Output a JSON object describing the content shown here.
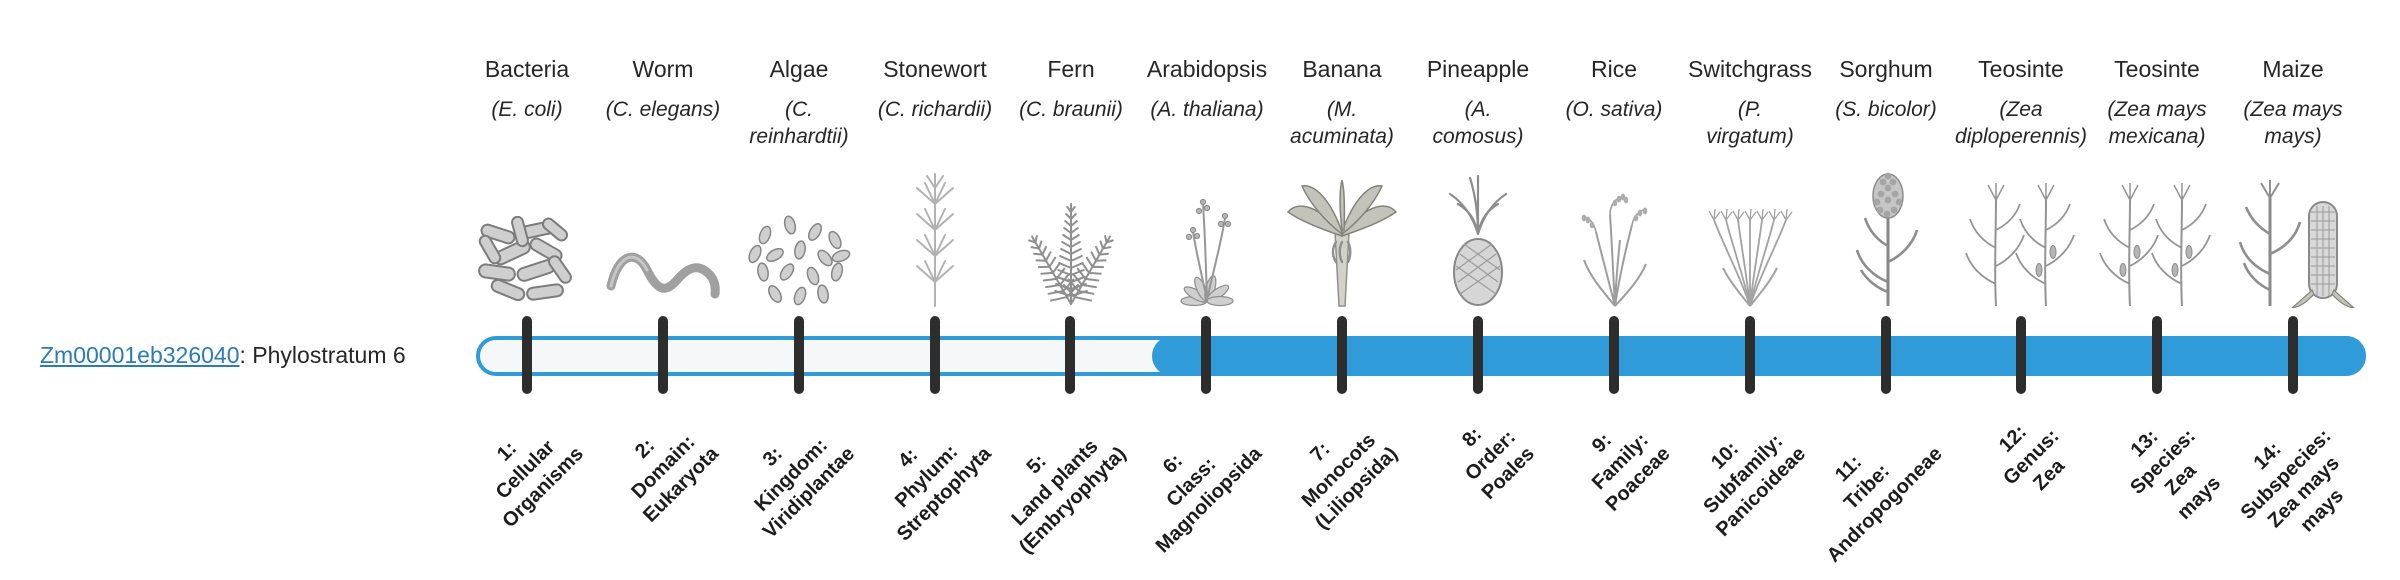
{
  "gene": {
    "id": "Zm00001eb326040",
    "suffix": ": Phylostratum 6"
  },
  "timeline": {
    "phylostratum": 6,
    "num_strata": 14,
    "bar_color": "#2F9BD8",
    "track_color": "#f6f7f8",
    "tick_color": "#2d2d2d",
    "link_color": "#2b7bba",
    "text_color": "#262626",
    "label_color": "#1c1c1c"
  },
  "organisms": [
    {
      "stratum": 1,
      "name": "Bacteria",
      "sci": "(E. coli)",
      "icon": "bacteria-icon",
      "bottom_label": "1:\nCellular\nOrganisms"
    },
    {
      "stratum": 2,
      "name": "Worm",
      "sci": "(C. elegans)",
      "icon": "worm-icon",
      "bottom_label": "2:\nDomain:\nEukaryota"
    },
    {
      "stratum": 3,
      "name": "Algae",
      "sci": "(C.\nreinhardtii)",
      "icon": "algae-icon",
      "bottom_label": "3:\nKingdom:\nViridiplantae"
    },
    {
      "stratum": 4,
      "name": "Stonewort",
      "sci": "(C. richardii)",
      "icon": "stonewort-icon",
      "bottom_label": "4:\nPhylum:\nStreptophyta"
    },
    {
      "stratum": 5,
      "name": "Fern",
      "sci": "(C. braunii)",
      "icon": "fern-icon",
      "bottom_label": "5:\nLand plants\n(Embryophyta)"
    },
    {
      "stratum": 6,
      "name": "Arabidopsis",
      "sci": "(A. thaliana)",
      "icon": "arabidopsis-icon",
      "bottom_label": "6:\nClass:\nMagnoliopsida"
    },
    {
      "stratum": 7,
      "name": "Banana",
      "sci": "(M.\nacuminata)",
      "icon": "banana-icon",
      "bottom_label": "7:\nMonocots\n(Liliopsida)"
    },
    {
      "stratum": 8,
      "name": "Pineapple",
      "sci": "(A.\ncomosus)",
      "icon": "pineapple-icon",
      "bottom_label": "8:\nOrder:\nPoales"
    },
    {
      "stratum": 9,
      "name": "Rice",
      "sci": "(O. sativa)",
      "icon": "rice-icon",
      "bottom_label": "9:\nFamily:\nPoaceae"
    },
    {
      "stratum": 10,
      "name": "Switchgrass",
      "sci": "(P.\nvirgatum)",
      "icon": "switchgrass-icon",
      "bottom_label": "10:\nSubfamily:\nPanicoideae"
    },
    {
      "stratum": 11,
      "name": "Sorghum",
      "sci": "(S. bicolor)",
      "icon": "sorghum-icon",
      "bottom_label": "11:\nTribe:\nAndropogoneae"
    },
    {
      "stratum": 12,
      "name": "Teosinte",
      "sci": "(Zea\ndiploperennis)",
      "icon": "teosinte-diploperennis-icon",
      "bottom_label": "12:\nGenus:\nZea"
    },
    {
      "stratum": 13,
      "name": "Teosinte",
      "sci": "(Zea mays\nmexicana)",
      "icon": "teosinte-mexicana-icon",
      "bottom_label": "13:\nSpecies:\nZea\nmays"
    },
    {
      "stratum": 14,
      "name": "Maize",
      "sci": "(Zea mays\nmays)",
      "icon": "maize-icon",
      "bottom_label": "14:\nSubspecies:\nZea mays\nmays"
    }
  ]
}
